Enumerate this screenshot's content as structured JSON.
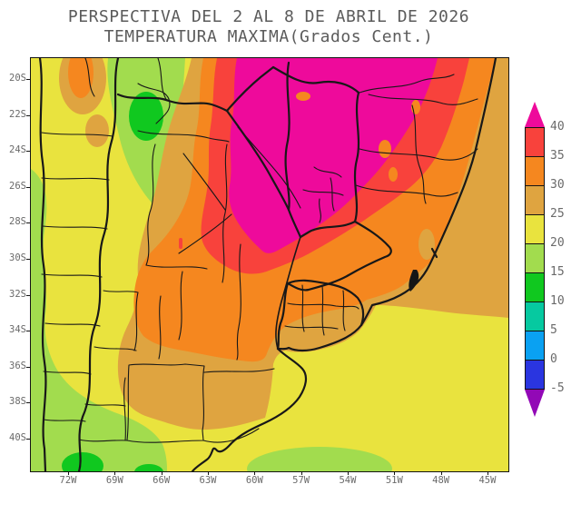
{
  "title": {
    "line1": "PERSPECTIVA DEL 2 AL 8 DE ABRIL DE 2026",
    "line2": "TEMPERATURA MAXIMA(Grados Cent.)"
  },
  "map": {
    "type": "filled-contour-temperature-map",
    "region": "Southern South America (Argentina, Chile, Paraguay, Uruguay, southern Brazil)",
    "variable": "Temperatura maxima",
    "units": "Grados Cent.",
    "axes": {
      "lat_labels": [
        "20S",
        "22S",
        "24S",
        "26S",
        "28S",
        "30S",
        "32S",
        "34S",
        "36S",
        "38S",
        "40S"
      ],
      "lon_labels": [
        "72W",
        "69W",
        "66W",
        "63W",
        "60W",
        "57W",
        "54W",
        "51W",
        "48W",
        "45W"
      ]
    },
    "legend": {
      "tick_labels": [
        "40",
        "35",
        "30",
        "25",
        "20",
        "15",
        "10",
        "5",
        "0",
        "-5"
      ],
      "band_colors": [
        "#f8423c",
        "#f5871f",
        "#dfa440",
        "#e9e33e",
        "#a2dc4e",
        "#10c81f",
        "#06c9a0",
        "#0aa1f2",
        "#2a35e0"
      ],
      "above_color": "#ee0a9b",
      "below_color": "#9208b6"
    },
    "palette": {
      "gt40": "#ee0a9b",
      "t35_40": "#f8423c",
      "t30_35": "#f5871f",
      "t25_30": "#dfa440",
      "t20_25": "#e9e33e",
      "t15_20": "#a2dc4e",
      "t10_15": "#10c81f",
      "t5_10": "#06c9a0",
      "t0_5": "#0aa1f2",
      "tm5_0": "#2a35e0",
      "ltm5": "#9208b6"
    }
  }
}
